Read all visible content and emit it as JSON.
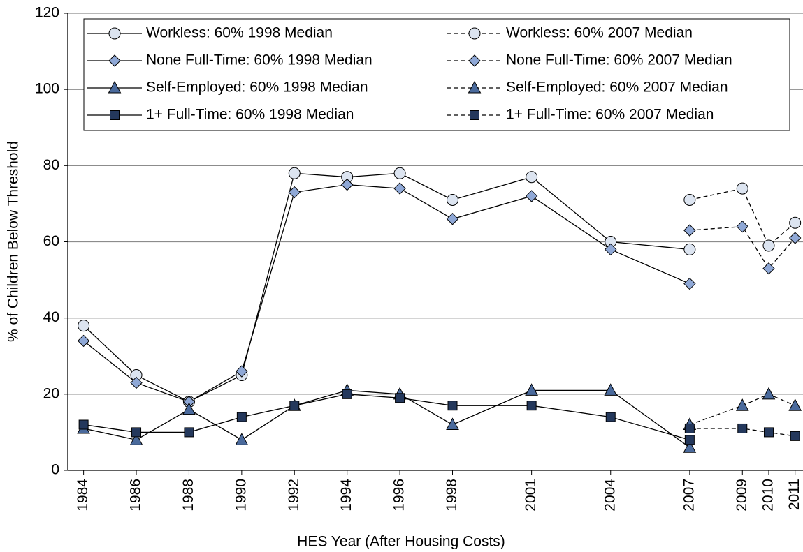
{
  "chart_data": {
    "type": "line",
    "x_label": "HES Year (After Housing Costs)",
    "y_label": "% of Children Below Threshold",
    "x": [
      1984,
      1986,
      1988,
      1990,
      1992,
      1994,
      1996,
      1998,
      2001,
      2004,
      2007,
      2009,
      2010,
      2011
    ],
    "xlim": [
      1983.4,
      2011.3
    ],
    "xticks": [
      1984,
      1986,
      1988,
      1990,
      1992,
      1994,
      1996,
      1998,
      2001,
      2004,
      2007,
      2009,
      2010,
      2011
    ],
    "ylim": [
      0,
      120
    ],
    "yticks": [
      0,
      20,
      40,
      60,
      80,
      100,
      120
    ],
    "grid": true,
    "series": [
      {
        "name": "Workless: 60% 1998 Median",
        "color": "#dce4f0",
        "marker": "circle",
        "dash": false,
        "values": [
          38,
          25,
          18,
          25,
          78,
          77,
          78,
          71,
          77,
          60,
          58,
          null,
          null,
          null
        ]
      },
      {
        "name": "Workless: 60% 2007 Median",
        "color": "#dce4f0",
        "marker": "circle",
        "dash": true,
        "values": [
          null,
          null,
          null,
          null,
          null,
          null,
          null,
          null,
          null,
          null,
          71,
          74,
          59,
          65
        ]
      },
      {
        "name": "None Full-Time:  60% 1998  Median",
        "color": "#8fa8d6",
        "marker": "diamond",
        "dash": false,
        "values": [
          34,
          23,
          18,
          26,
          73,
          75,
          74,
          66,
          72,
          58,
          49,
          null,
          null,
          null
        ]
      },
      {
        "name": "None Full-Time:  60% 2007 Median",
        "color": "#8fa8d6",
        "marker": "diamond",
        "dash": true,
        "values": [
          null,
          null,
          null,
          null,
          null,
          null,
          null,
          null,
          null,
          null,
          63,
          64,
          53,
          61
        ]
      },
      {
        "name": "Self-Employed: 60% 1998 Median",
        "color": "#4a6a9c",
        "marker": "triangle",
        "dash": false,
        "values": [
          11,
          8,
          16,
          8,
          17,
          21,
          20,
          12,
          21,
          21,
          6,
          null,
          null,
          null
        ]
      },
      {
        "name": "Self-Employed: 60% 2007 Median",
        "color": "#4a6a9c",
        "marker": "triangle",
        "dash": true,
        "values": [
          null,
          null,
          null,
          null,
          null,
          null,
          null,
          null,
          null,
          null,
          12,
          17,
          20,
          17
        ]
      },
      {
        "name": "1+ Full-Time:  60% 1998  Median",
        "color": "#24385c",
        "marker": "square",
        "dash": false,
        "values": [
          12,
          10,
          10,
          14,
          17,
          20,
          19,
          17,
          17,
          14,
          8,
          null,
          null,
          null
        ]
      },
      {
        "name": "1+ Full-Time:  60% 2007 Median",
        "color": "#24385c",
        "marker": "square",
        "dash": true,
        "values": [
          null,
          null,
          null,
          null,
          null,
          null,
          null,
          null,
          null,
          null,
          11,
          11,
          10,
          9
        ]
      }
    ]
  }
}
